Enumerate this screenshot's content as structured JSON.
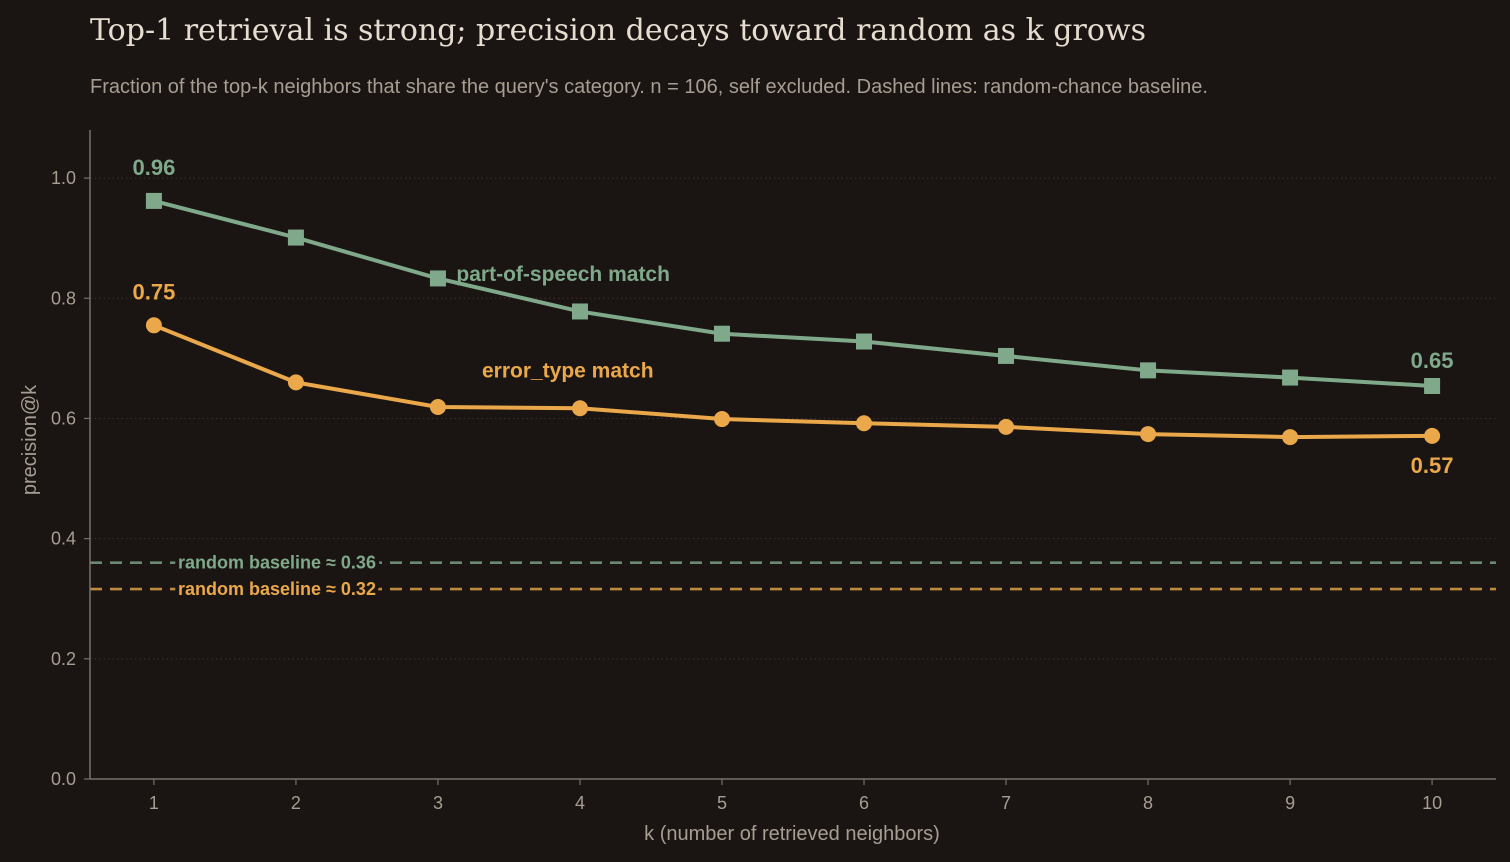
{
  "chart_data": {
    "type": "line",
    "title": "Top-1 retrieval is strong; precision decays toward random as k grows",
    "subtitle": "Fraction of the top-k neighbors that share the query's category.  n = 106, self excluded.  Dashed lines: random-chance baseline.",
    "xlabel": "k (number of retrieved neighbors)",
    "ylabel": "precision@k",
    "x": [
      1,
      2,
      3,
      4,
      5,
      6,
      7,
      8,
      9,
      10
    ],
    "xlim": [
      0.55,
      10.45
    ],
    "ylim": [
      0,
      1.08
    ],
    "yticks": [
      0.0,
      0.2,
      0.4,
      0.6,
      0.8,
      1.0
    ],
    "ytick_labels": [
      "0.0",
      "0.2",
      "0.4",
      "0.6",
      "0.8",
      "1.0"
    ],
    "grid": "horizontal dotted",
    "series": [
      {
        "name": "part-of-speech match",
        "color": "#7fa98a",
        "marker": "square",
        "values": [
          0.962,
          0.901,
          0.833,
          0.778,
          0.741,
          0.728,
          0.704,
          0.68,
          0.668,
          0.654
        ],
        "first_label": "0.96",
        "last_label": "0.65",
        "baseline": 0.36,
        "baseline_label": "random baseline ≈ 0.36"
      },
      {
        "name": "error_type match",
        "color": "#eaa84a",
        "marker": "circle",
        "values": [
          0.755,
          0.66,
          0.619,
          0.617,
          0.599,
          0.592,
          0.586,
          0.574,
          0.569,
          0.571
        ],
        "first_label": "0.75",
        "last_label": "0.57",
        "baseline": 0.316,
        "baseline_label": "random baseline ≈ 0.32"
      }
    ]
  }
}
